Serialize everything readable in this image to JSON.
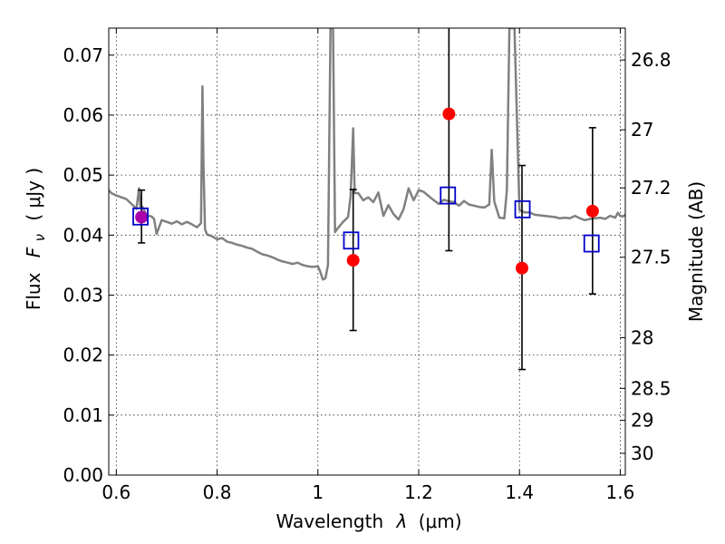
{
  "chart_data": {
    "type": "scatter",
    "title": "",
    "xlabel_text": "Wavelength",
    "xlabel_symbol": "λ",
    "xlabel_unit": "(μm)",
    "ylabel_text": "Flux",
    "ylabel_symbol_main": "F",
    "ylabel_symbol_sub": "ν",
    "ylabel_unit": "( μJy )",
    "ylabel_right": "Magnitude (AB)",
    "xlim": [
      0.585,
      1.61
    ],
    "ylim": [
      0.0,
      0.0745
    ],
    "grid": true,
    "x_ticks": [
      0.6,
      0.8,
      1.0,
      1.2,
      1.4,
      1.6
    ],
    "x_tick_labels": [
      "0.6",
      "0.8",
      "1",
      "1.2",
      "1.4",
      "1.6"
    ],
    "y_ticks": [
      0.0,
      0.01,
      0.02,
      0.03,
      0.04,
      0.05,
      0.06,
      0.07
    ],
    "y_tick_labels": [
      "0.00",
      "0.01",
      "0.02",
      "0.03",
      "0.04",
      "0.05",
      "0.06",
      "0.07"
    ],
    "mag_ticks": [
      26.8,
      27,
      27.2,
      27.5,
      28,
      28.5,
      29,
      30
    ],
    "mag_tick_labels": [
      "26.8",
      "27",
      "27.2",
      "27.5",
      "28",
      "28.5",
      "29",
      "30"
    ],
    "colors": {
      "model": "#808080",
      "observed": "#ff0000",
      "model_bands": "#0000cc",
      "errorbar": "#000000",
      "overlap": "#aa00aa"
    },
    "series": [
      {
        "kind": "line",
        "x": [
          0.585,
          0.59,
          0.6,
          0.61,
          0.62,
          0.63,
          0.64,
          0.645,
          0.648,
          0.652,
          0.66,
          0.67,
          0.675,
          0.68,
          0.69,
          0.7,
          0.71,
          0.72,
          0.73,
          0.74,
          0.75,
          0.76,
          0.768,
          0.771,
          0.773,
          0.776,
          0.78,
          0.79,
          0.8,
          0.81,
          0.82,
          0.83,
          0.84,
          0.85,
          0.86,
          0.87,
          0.88,
          0.89,
          0.9,
          0.91,
          0.92,
          0.93,
          0.94,
          0.95,
          0.96,
          0.97,
          0.98,
          0.99,
          1.0,
          1.003,
          1.01,
          1.015,
          1.02,
          1.025,
          1.03,
          1.034,
          1.04,
          1.05,
          1.06,
          1.065,
          1.07,
          1.073,
          1.08,
          1.09,
          1.1,
          1.11,
          1.12,
          1.13,
          1.14,
          1.15,
          1.16,
          1.17,
          1.18,
          1.19,
          1.2,
          1.21,
          1.22,
          1.23,
          1.24,
          1.25,
          1.26,
          1.27,
          1.28,
          1.29,
          1.3,
          1.31,
          1.32,
          1.33,
          1.34,
          1.345,
          1.35,
          1.36,
          1.37,
          1.375,
          1.38,
          1.39,
          1.4,
          1.41,
          1.42,
          1.43,
          1.44,
          1.45,
          1.46,
          1.47,
          1.48,
          1.49,
          1.5,
          1.51,
          1.52,
          1.53,
          1.54,
          1.55,
          1.56,
          1.57,
          1.58,
          1.59,
          1.595,
          1.6,
          1.605,
          1.61
        ],
        "y": [
          0.0475,
          0.047,
          0.0466,
          0.0463,
          0.046,
          0.0452,
          0.0444,
          0.0478,
          0.0446,
          0.0447,
          0.0433,
          0.0431,
          0.0427,
          0.0402,
          0.0425,
          0.0422,
          0.0419,
          0.0423,
          0.0418,
          0.0422,
          0.0418,
          0.0413,
          0.042,
          0.0648,
          0.052,
          0.041,
          0.0401,
          0.0398,
          0.0393,
          0.0395,
          0.0389,
          0.0387,
          0.0384,
          0.0382,
          0.0379,
          0.0377,
          0.0372,
          0.0368,
          0.0366,
          0.0363,
          0.0359,
          0.0356,
          0.0354,
          0.0352,
          0.0354,
          0.035,
          0.0348,
          0.0347,
          0.0348,
          0.0343,
          0.0326,
          0.0328,
          0.035,
          0.0745,
          0.0745,
          0.0405,
          0.0412,
          0.0422,
          0.043,
          0.0465,
          0.0578,
          0.047,
          0.047,
          0.0458,
          0.0463,
          0.0455,
          0.0471,
          0.0432,
          0.045,
          0.0435,
          0.0426,
          0.0443,
          0.0478,
          0.0458,
          0.0475,
          0.0472,
          0.0465,
          0.0458,
          0.0452,
          0.0459,
          0.0456,
          0.0455,
          0.0449,
          0.0457,
          0.0451,
          0.0449,
          0.0447,
          0.0446,
          0.0451,
          0.0542,
          0.0456,
          0.0429,
          0.0428,
          0.0474,
          0.0745,
          0.0745,
          0.0442,
          0.0438,
          0.0438,
          0.0434,
          0.0433,
          0.0432,
          0.0431,
          0.043,
          0.0428,
          0.0429,
          0.0428,
          0.0432,
          0.0428,
          0.0425,
          0.0427,
          0.0428,
          0.0429,
          0.0427,
          0.0432,
          0.0429,
          0.0437,
          0.0432,
          0.0431,
          0.0434
        ]
      },
      {
        "kind": "errorbar",
        "x": [
          0.65,
          1.07,
          1.26,
          1.405,
          1.545
        ],
        "y": [
          0.043,
          0.0358,
          0.0602,
          0.0345,
          0.044
        ],
        "yerr_low": [
          0.0043,
          0.0117,
          0.0228,
          0.0169,
          0.0138
        ],
        "yerr_high": [
          0.0045,
          0.0118,
          0.0145,
          0.0171,
          0.0139
        ]
      },
      {
        "kind": "points",
        "x": [
          0.65,
          1.07,
          1.26,
          1.405,
          1.545
        ],
        "y": [
          0.043,
          0.0358,
          0.0602,
          0.0345,
          0.044
        ]
      },
      {
        "kind": "squares",
        "x": [
          0.648,
          1.066,
          1.258,
          1.406,
          1.543
        ],
        "y": [
          0.0431,
          0.0391,
          0.0466,
          0.0443,
          0.0386
        ]
      }
    ]
  }
}
